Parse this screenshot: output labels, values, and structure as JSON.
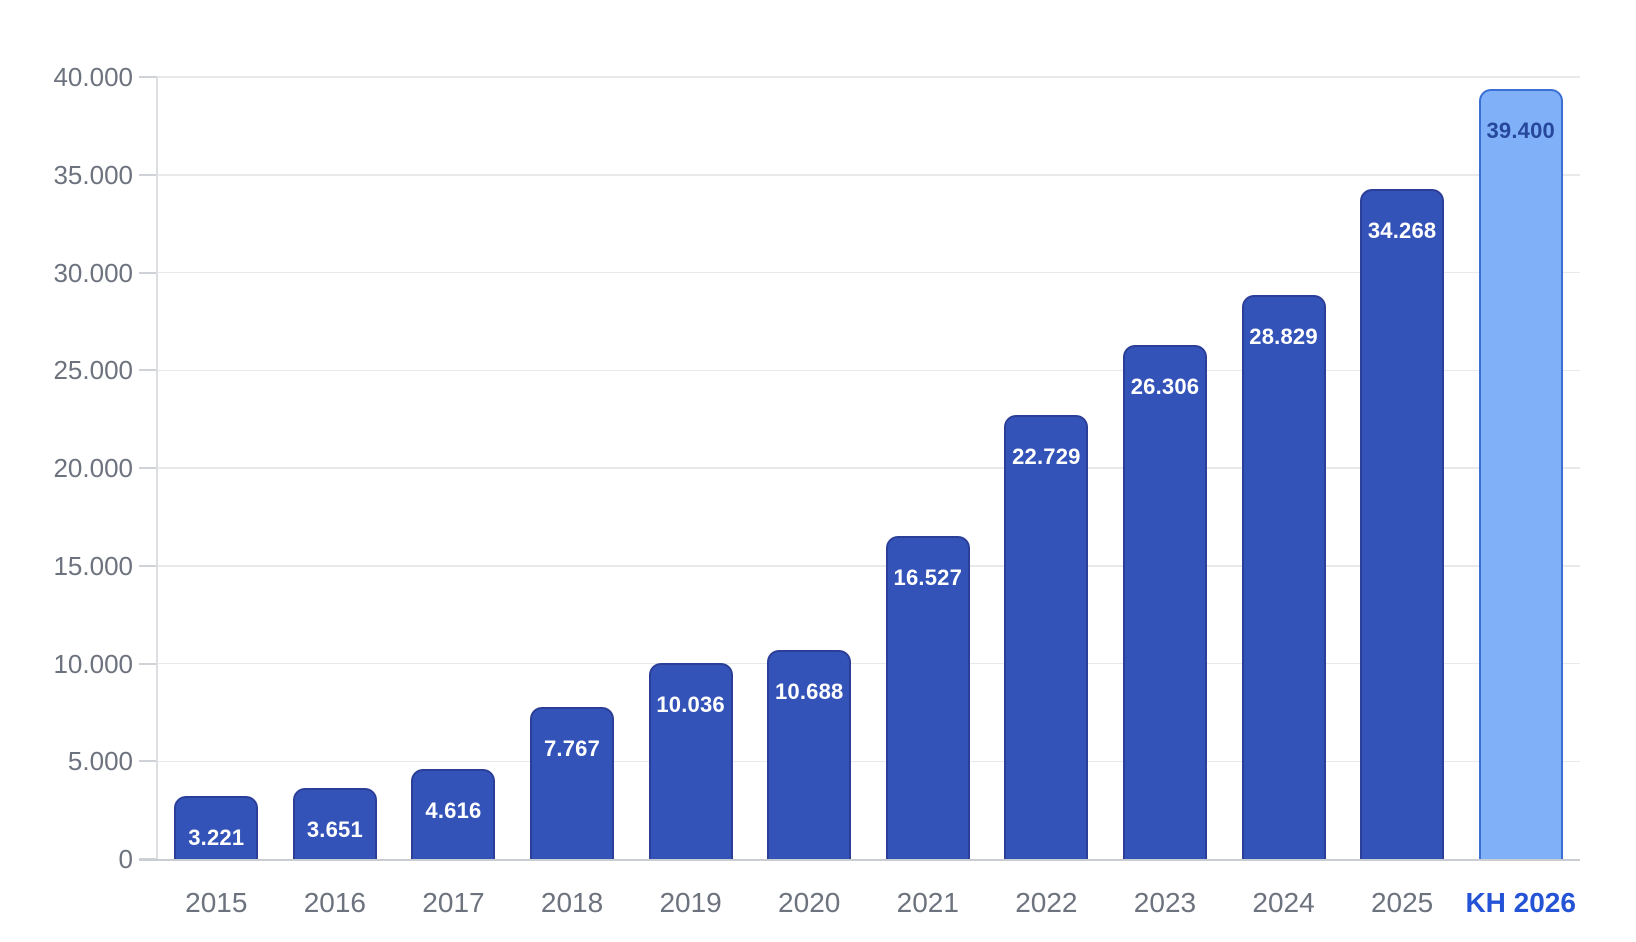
{
  "chart_data": {
    "type": "bar",
    "categories": [
      "2015",
      "2016",
      "2017",
      "2018",
      "2019",
      "2020",
      "2021",
      "2022",
      "2023",
      "2024",
      "2025",
      "KH 2026"
    ],
    "values": [
      3221,
      3651,
      4616,
      7767,
      10036,
      10688,
      16527,
      22729,
      26306,
      28829,
      34268,
      39400
    ],
    "value_labels": [
      "3.221",
      "3.651",
      "4.616",
      "7.767",
      "10.036",
      "10.688",
      "16.527",
      "22.729",
      "26.306",
      "28.829",
      "34.268",
      "39.400"
    ],
    "title": "",
    "xlabel": "",
    "ylabel": "",
    "ylim": [
      0,
      40000
    ],
    "ytick_step": 5000,
    "ytick_labels": [
      "0",
      "5.000",
      "10.000",
      "15.000",
      "20.000",
      "25.000",
      "30.000",
      "35.000",
      "40.000"
    ],
    "grid": true,
    "legend_position": "none",
    "highlight_index": 11,
    "colors": {
      "bar_fill": "#3453b8",
      "bar_border": "#2c3f98",
      "bar_value_label": "#ffffff",
      "highlight_bar_fill": "#80b1f8",
      "highlight_bar_border": "#3b6fd3",
      "highlight_bar_value_label": "#27479c",
      "axis_tick_label": "#6d737e",
      "highlight_axis_tick_label": "#2553d6",
      "gridline": "#e8e9eb",
      "y_axis_line": "#dcdee1",
      "baseline": "#c9ccd1",
      "tick_mark": "#cfd2d6",
      "background": "#ffffff"
    }
  }
}
